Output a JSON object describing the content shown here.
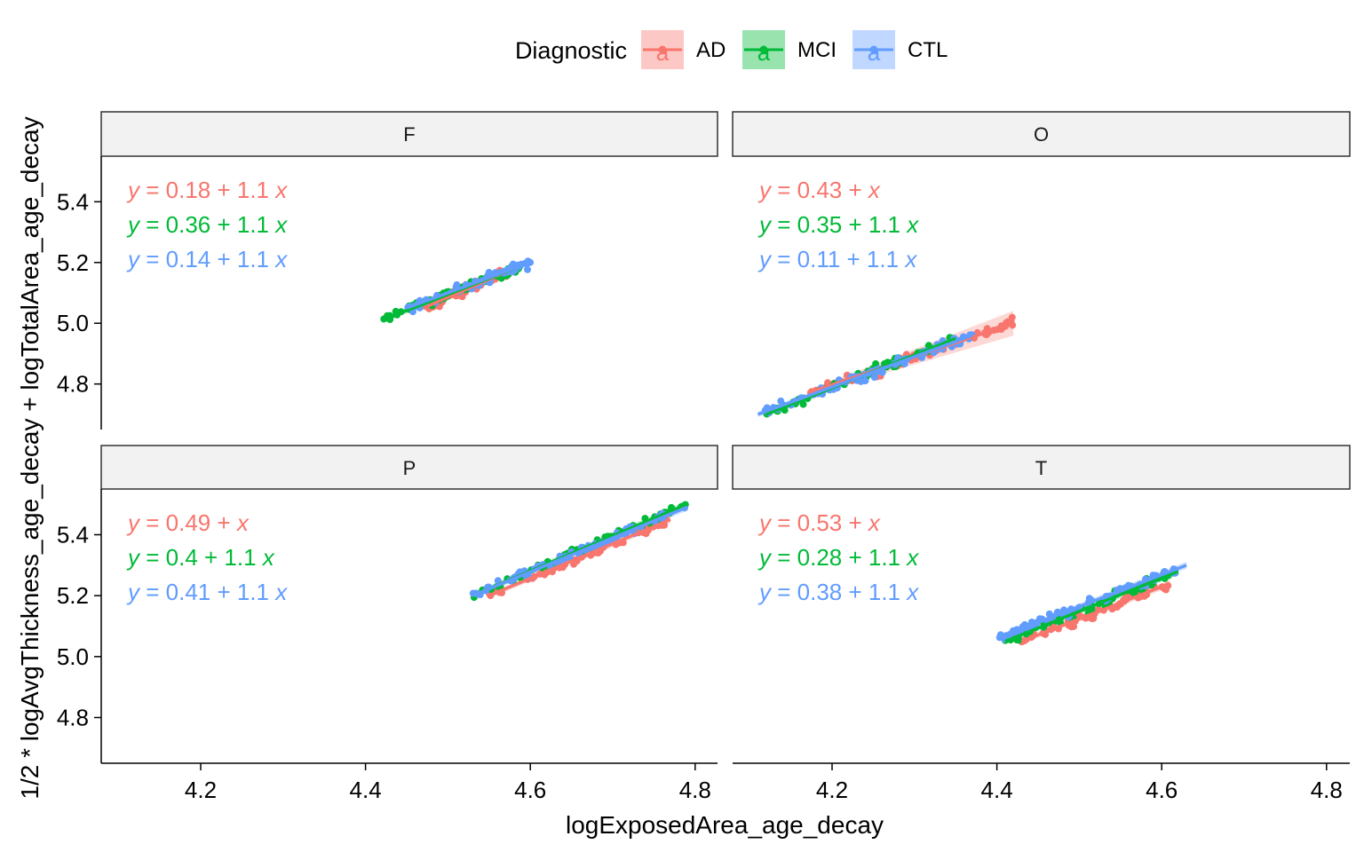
{
  "chart_data": {
    "type": "scatter",
    "title": "",
    "xlabel": "logExposedArea_age_decay",
    "ylabel": "1/2 * logAvgThickness_age_decay + logTotalArea_age_decay",
    "xlim": [
      4.08,
      4.83
    ],
    "ylim": [
      4.65,
      5.55
    ],
    "x_ticks": [
      "4.2",
      "4.4",
      "4.6",
      "4.8"
    ],
    "y_ticks": [
      "4.8",
      "5.0",
      "5.2",
      "5.4"
    ],
    "grid": false,
    "legend": {
      "title": "Diagnostic",
      "position": "top",
      "key_glyph": "a",
      "entries": [
        {
          "name": "AD",
          "color": "#F8766D"
        },
        {
          "name": "MCI",
          "color": "#00BA38"
        },
        {
          "name": "CTL",
          "color": "#619CFF"
        }
      ]
    },
    "panels": [
      {
        "facet": "F",
        "series": [
          {
            "name": "AD",
            "color": "#F8766D",
            "x_range": [
              4.47,
              4.58
            ],
            "fit": {
              "intercept": 0.18,
              "slope": 1.1
            },
            "fit_line": [
              [
                4.47,
                5.05
              ],
              [
                4.58,
                5.18
              ]
            ],
            "equation": {
              "intercept": "0.18",
              "slope": "1.1"
            }
          },
          {
            "name": "MCI",
            "color": "#00BA38",
            "x_range": [
              4.42,
              4.59
            ],
            "fit": {
              "intercept": 0.36,
              "slope": 1.1
            },
            "fit_line": [
              [
                4.42,
                5.01
              ],
              [
                4.59,
                5.19
              ]
            ],
            "equation": {
              "intercept": "0.36",
              "slope": "1.1"
            }
          },
          {
            "name": "CTL",
            "color": "#619CFF",
            "x_range": [
              4.45,
              4.6
            ],
            "fit": {
              "intercept": 0.14,
              "slope": 1.1
            },
            "fit_line": [
              [
                4.45,
                5.05
              ],
              [
                4.6,
                5.2
              ]
            ],
            "equation": {
              "intercept": "0.14",
              "slope": "1.1"
            }
          }
        ]
      },
      {
        "facet": "O",
        "series": [
          {
            "name": "AD",
            "color": "#F8766D",
            "x_range": [
              4.17,
              4.42
            ],
            "fit": {
              "intercept": 0.43,
              "slope": 1.0
            },
            "fit_line": [
              [
                4.17,
                4.77
              ],
              [
                4.42,
                5.0
              ]
            ],
            "equation": {
              "intercept": "0.43",
              "slope": ""
            }
          },
          {
            "name": "MCI",
            "color": "#00BA38",
            "x_range": [
              4.12,
              4.35
            ],
            "fit": {
              "intercept": 0.35,
              "slope": 1.1
            },
            "fit_line": [
              [
                4.12,
                4.7
              ],
              [
                4.35,
                4.95
              ]
            ],
            "equation": {
              "intercept": "0.35",
              "slope": "1.1"
            }
          },
          {
            "name": "CTL",
            "color": "#619CFF",
            "x_range": [
              4.11,
              4.37
            ],
            "fit": {
              "intercept": 0.11,
              "slope": 1.1
            },
            "fit_line": [
              [
                4.11,
                4.7
              ],
              [
                4.37,
                4.96
              ]
            ],
            "equation": {
              "intercept": "0.11",
              "slope": "1.1"
            }
          }
        ]
      },
      {
        "facet": "P",
        "series": [
          {
            "name": "AD",
            "color": "#F8766D",
            "x_range": [
              4.55,
              4.77
            ],
            "fit": {
              "intercept": 0.49,
              "slope": 1.0
            },
            "fit_line": [
              [
                4.55,
                5.2
              ],
              [
                4.77,
                5.45
              ]
            ],
            "equation": {
              "intercept": "0.49",
              "slope": ""
            }
          },
          {
            "name": "MCI",
            "color": "#00BA38",
            "x_range": [
              4.53,
              4.79
            ],
            "fit": {
              "intercept": 0.4,
              "slope": 1.1
            },
            "fit_line": [
              [
                4.53,
                5.2
              ],
              [
                4.79,
                5.5
              ]
            ],
            "equation": {
              "intercept": "0.4",
              "slope": "1.1"
            }
          },
          {
            "name": "CTL",
            "color": "#619CFF",
            "x_range": [
              4.53,
              4.79
            ],
            "fit": {
              "intercept": 0.41,
              "slope": 1.1
            },
            "fit_line": [
              [
                4.53,
                5.2
              ],
              [
                4.79,
                5.49
              ]
            ],
            "equation": {
              "intercept": "0.41",
              "slope": "1.1"
            }
          }
        ]
      },
      {
        "facet": "T",
        "series": [
          {
            "name": "AD",
            "color": "#F8766D",
            "x_range": [
              4.43,
              4.61
            ],
            "fit": {
              "intercept": 0.53,
              "slope": 1.0
            },
            "fit_line": [
              [
                4.43,
                5.05
              ],
              [
                4.61,
                5.24
              ]
            ],
            "equation": {
              "intercept": "0.53",
              "slope": ""
            }
          },
          {
            "name": "MCI",
            "color": "#00BA38",
            "x_range": [
              4.41,
              4.62
            ],
            "fit": {
              "intercept": 0.28,
              "slope": 1.1
            },
            "fit_line": [
              [
                4.41,
                5.05
              ],
              [
                4.62,
                5.28
              ]
            ],
            "equation": {
              "intercept": "0.28",
              "slope": "1.1"
            }
          },
          {
            "name": "CTL",
            "color": "#619CFF",
            "x_range": [
              4.4,
              4.63
            ],
            "fit": {
              "intercept": 0.38,
              "slope": 1.1
            },
            "fit_line": [
              [
                4.4,
                5.06
              ],
              [
                4.63,
                5.3
              ]
            ],
            "equation": {
              "intercept": "0.38",
              "slope": "1.1"
            }
          }
        ]
      }
    ]
  }
}
